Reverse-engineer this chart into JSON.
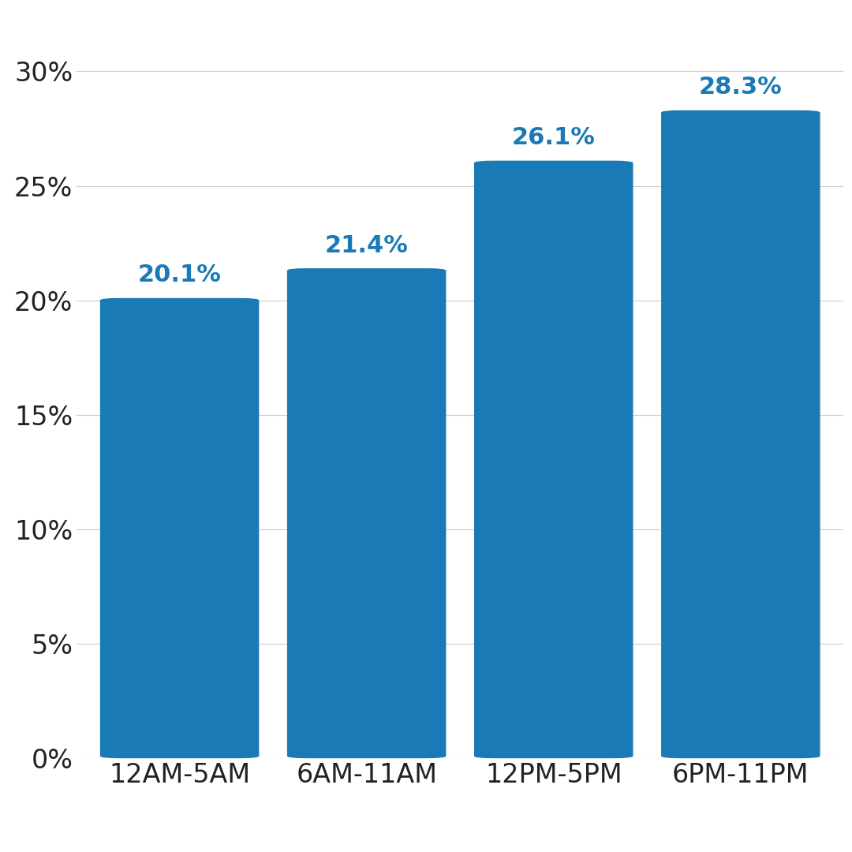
{
  "categories": [
    "12AM-5AM",
    "6AM-11AM",
    "12PM-5PM",
    "6PM-11PM"
  ],
  "values": [
    20.1,
    21.4,
    26.1,
    28.3
  ],
  "labels": [
    "20.1%",
    "21.4%",
    "26.1%",
    "28.3%"
  ],
  "bar_color": "#1a7ab5",
  "label_color": "#1a7ab5",
  "background_color": "#ffffff",
  "ylim": [
    0,
    32
  ],
  "yticks": [
    0,
    5,
    10,
    15,
    20,
    25,
    30
  ],
  "ytick_labels": [
    "0%",
    "5%",
    "10%",
    "15%",
    "20%",
    "25%",
    "30%"
  ],
  "grid_color": "#cccccc",
  "tick_color": "#222222",
  "label_fontsize": 22,
  "tick_fontsize": 24,
  "xlabel_fontsize": 24,
  "bar_width": 0.85,
  "bar_gap": 0.04
}
